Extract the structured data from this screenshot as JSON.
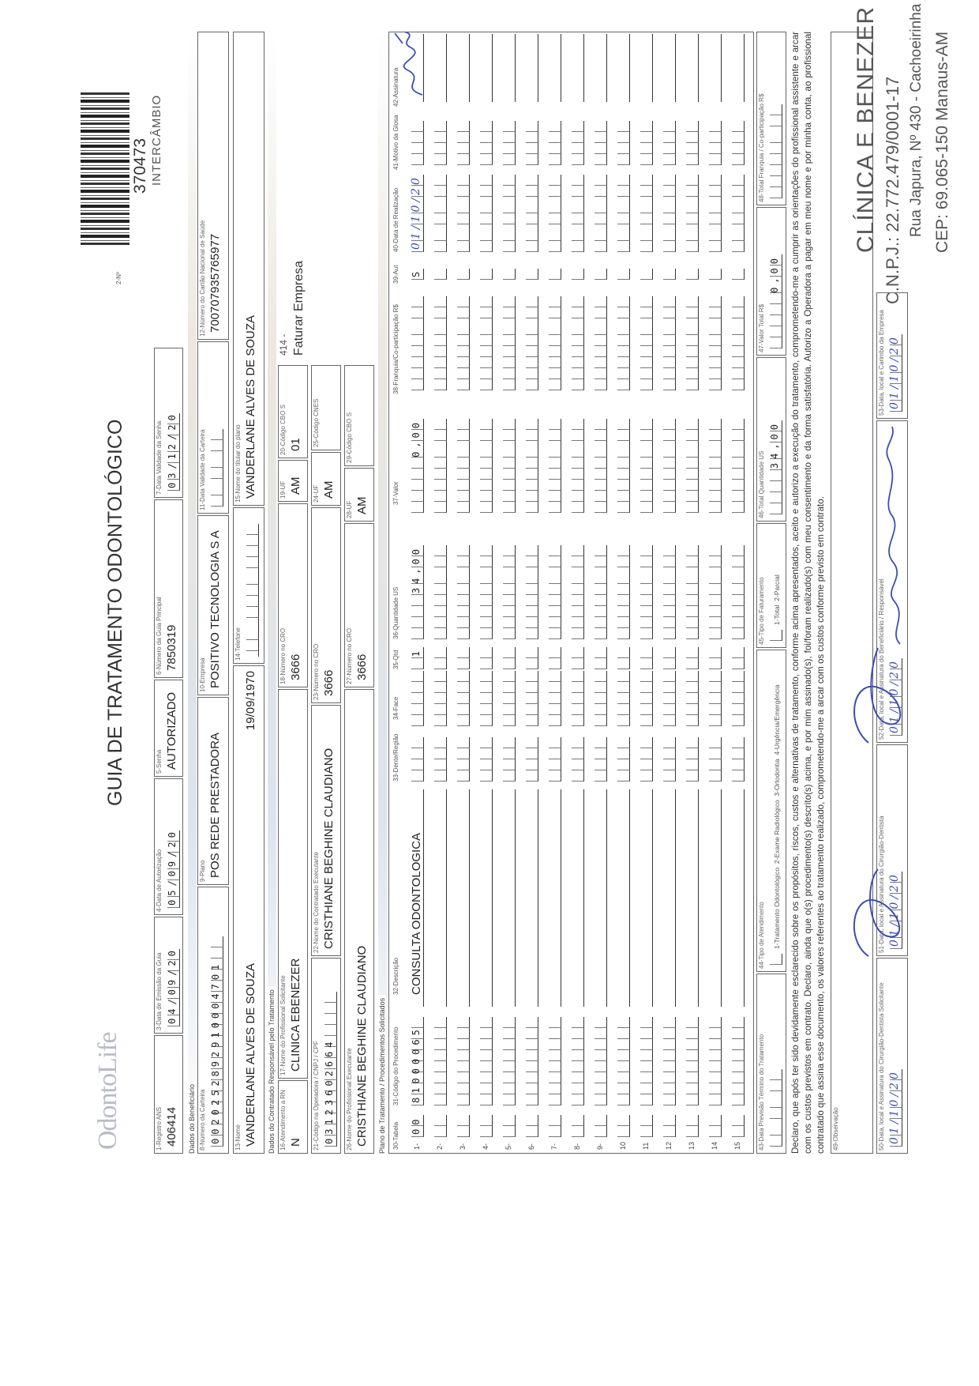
{
  "header": {
    "logo_text": "OdontoLife",
    "title": "GUIA DE TRATAMENTO ODONTOLÓGICO",
    "guide_number_label": "2-Nº",
    "guide_number": "370473",
    "guide_type": "INTERCÂMBIO"
  },
  "sections": {
    "beneficiario": "Dados do Beneficiário",
    "contratado": "Dados do Contratado Responsável pelo Tratamento",
    "plano": "Plano de Tratamento / Procedimentos Solicitados"
  },
  "fields": {
    "f1": {
      "label": "1-Registro ANS",
      "value": "406414"
    },
    "f3": {
      "label": "3-Data de Emissão da Guia",
      "value": "04/09/20"
    },
    "f4": {
      "label": "4-Data de Autorização",
      "value": "05/09/20"
    },
    "f5": {
      "label": "5-Senha",
      "value": "AUTORIZADO"
    },
    "f6": {
      "label": "6-Número da Guia Principal",
      "value": "7850319"
    },
    "f7": {
      "label": "7-Data Validade da Senha",
      "value": "03/12/20"
    },
    "f8": {
      "label": "8-Número da Carteira",
      "value": "0020252892910004701"
    },
    "f9": {
      "label": "9-Plano",
      "value": "POS REDE PRESTADORA"
    },
    "f10": {
      "label": "10-Empresa",
      "value": "POSITIVO TECNOLOGIA S A"
    },
    "f11": {
      "label": "11-Data Validade da Carteira",
      "value": ""
    },
    "f12": {
      "label": "12-Número do Cartão Nacional de Saúde",
      "value": "700707935765977"
    },
    "f13": {
      "label": "13-Nome",
      "value": "VANDERLANE ALVES DE SOUZA",
      "birth_date": "19/09/1970"
    },
    "f14": {
      "label": "14-Telefone",
      "value": ""
    },
    "f15": {
      "label": "15-Nome do titular do plano",
      "value": "VANDERLANE ALVES DE SOUZA"
    },
    "f16": {
      "label": "16-Atendimento a RN",
      "value": "N"
    },
    "f17": {
      "label": "17-Nome do Profissional Solicitante",
      "value": "CLINICA EBENEZER"
    },
    "f18": {
      "label": "18-Número no CRO",
      "value": "3666"
    },
    "f19": {
      "label": "19-UF",
      "value": "AM"
    },
    "f20": {
      "label": "20-Código CBO S",
      "value": "01"
    },
    "billing_note": {
      "code": "414 -",
      "text": "Faturar Empresa"
    },
    "f21": {
      "label": "21-Código na Operadora / CNPJ / CPF",
      "value": "03123602664"
    },
    "f22": {
      "label": "22-Nome do Contratado Executante",
      "value": "CRISTHIANE BEGHINE CLAUDIANO"
    },
    "f23": {
      "label": "23-Número no CRO",
      "value": "3666"
    },
    "f24": {
      "label": "24-UF",
      "value": "AM"
    },
    "f25": {
      "label": "25-Código CNES",
      "value": ""
    },
    "f26": {
      "label": "26-Nome do Profissional Executante",
      "value": "CRISTHIANE BEGHINE CLAUDIANO"
    },
    "f27": {
      "label": "27-Número no CRO",
      "value": "3666"
    },
    "f28": {
      "label": "28-UF",
      "value": "AM"
    },
    "f29": {
      "label": "29-Código CBO S",
      "value": ""
    },
    "f43": {
      "label": "43-Data Previsão Término do Tratamento",
      "value": ""
    },
    "f44": {
      "label": "44-Tipo de Atendimento",
      "value": "",
      "options": "1-Tratamento Odontológico  2-Exame Radiológico  3-Ortodontia  4-Urgência/Emergência"
    },
    "f45": {
      "label": "45-Tipo de Faturamento",
      "value": "",
      "options": "1-Total  2-Parcial"
    },
    "f46": {
      "label": "46-Total Quantidade US",
      "value": "34,00"
    },
    "f47": {
      "label": "47-Valor Total R$",
      "value": "0,00"
    },
    "f48": {
      "label": "48-Total Franquia / Co-participação R$",
      "value": ""
    },
    "f49": {
      "label": "49-Observação",
      "value": ""
    },
    "f50": {
      "label": "50-Data, local e Assinatura do Cirurgião-Dentista Solicitante",
      "value": "01/10/20"
    },
    "f51": {
      "label": "51-Data, local e Assinatura do Cirurgião-Dentista",
      "value": "01/10/20"
    },
    "f52": {
      "label": "52-Data, local e Assinatura do Beneficiário / Responsável",
      "value": "01/10/20"
    },
    "f53": {
      "label": "53-Data, local e Carimbo da Empresa",
      "value": "01/10/20"
    }
  },
  "table": {
    "headers": {
      "tabela": "30-Tabela",
      "codigo": "31-Código do Procedimento",
      "descricao": "32-Descrição",
      "dente": "33-Dente/Região",
      "face": "34-Face",
      "qtd": "35-Qtd",
      "qtd_us": "36-Quantidade US",
      "valor": "37-Valor",
      "franquia": "38-Franquia/Co-participação R$",
      "aut": "39-Aut",
      "data": "40-Data de Realização",
      "motivo": "41-Motivo da Glosa",
      "assinatura": "42-Assinatura"
    },
    "rows": [
      {
        "n": "1-",
        "tabela": "00",
        "codigo": "81000065",
        "descricao": "CONSULTA ODONTOLOGICA",
        "dente": "",
        "face": "",
        "qtd": "1",
        "qtd_us": "34,00",
        "valor": "0,00",
        "franquia": "",
        "aut": "S",
        "data": "01/10/20",
        "motivo": "",
        "signed": true
      },
      {
        "n": "2-",
        "tabela": "",
        "codigo": "",
        "descricao": "",
        "dente": "",
        "face": "",
        "qtd": "",
        "qtd_us": "",
        "valor": "",
        "franquia": "",
        "aut": "",
        "data": "",
        "motivo": ""
      },
      {
        "n": "3-",
        "tabela": "",
        "codigo": "",
        "descricao": "",
        "dente": "",
        "face": "",
        "qtd": "",
        "qtd_us": "",
        "valor": "",
        "franquia": "",
        "aut": "",
        "data": "",
        "motivo": ""
      },
      {
        "n": "4-",
        "tabela": "",
        "codigo": "",
        "descricao": "",
        "dente": "",
        "face": "",
        "qtd": "",
        "qtd_us": "",
        "valor": "",
        "franquia": "",
        "aut": "",
        "data": "",
        "motivo": ""
      },
      {
        "n": "5-",
        "tabela": "",
        "codigo": "",
        "descricao": "",
        "dente": "",
        "face": "",
        "qtd": "",
        "qtd_us": "",
        "valor": "",
        "franquia": "",
        "aut": "",
        "data": "",
        "motivo": ""
      },
      {
        "n": "6-",
        "tabela": "",
        "codigo": "",
        "descricao": "",
        "dente": "",
        "face": "",
        "qtd": "",
        "qtd_us": "",
        "valor": "",
        "franquia": "",
        "aut": "",
        "data": "",
        "motivo": ""
      },
      {
        "n": "7-",
        "tabela": "",
        "codigo": "",
        "descricao": "",
        "dente": "",
        "face": "",
        "qtd": "",
        "qtd_us": "",
        "valor": "",
        "franquia": "",
        "aut": "",
        "data": "",
        "motivo": ""
      },
      {
        "n": "8-",
        "tabela": "",
        "codigo": "",
        "descricao": "",
        "dente": "",
        "face": "",
        "qtd": "",
        "qtd_us": "",
        "valor": "",
        "franquia": "",
        "aut": "",
        "data": "",
        "motivo": ""
      },
      {
        "n": "9-",
        "tabela": "",
        "codigo": "",
        "descricao": "",
        "dente": "",
        "face": "",
        "qtd": "",
        "qtd_us": "",
        "valor": "",
        "franquia": "",
        "aut": "",
        "data": "",
        "motivo": ""
      },
      {
        "n": "10",
        "tabela": "",
        "codigo": "",
        "descricao": "",
        "dente": "",
        "face": "",
        "qtd": "",
        "qtd_us": "",
        "valor": "",
        "franquia": "",
        "aut": "",
        "data": "",
        "motivo": ""
      },
      {
        "n": "11",
        "tabela": "",
        "codigo": "",
        "descricao": "",
        "dente": "",
        "face": "",
        "qtd": "",
        "qtd_us": "",
        "valor": "",
        "franquia": "",
        "aut": "",
        "data": "",
        "motivo": ""
      },
      {
        "n": "12",
        "tabela": "",
        "codigo": "",
        "descricao": "",
        "dente": "",
        "face": "",
        "qtd": "",
        "qtd_us": "",
        "valor": "",
        "franquia": "",
        "aut": "",
        "data": "",
        "motivo": ""
      },
      {
        "n": "13",
        "tabela": "",
        "codigo": "",
        "descricao": "",
        "dente": "",
        "face": "",
        "qtd": "",
        "qtd_us": "",
        "valor": "",
        "franquia": "",
        "aut": "",
        "data": "",
        "motivo": ""
      },
      {
        "n": "14",
        "tabela": "",
        "codigo": "",
        "descricao": "",
        "dente": "",
        "face": "",
        "qtd": "",
        "qtd_us": "",
        "valor": "",
        "franquia": "",
        "aut": "",
        "data": "",
        "motivo": ""
      },
      {
        "n": "15",
        "tabela": "",
        "codigo": "",
        "descricao": "",
        "dente": "",
        "face": "",
        "qtd": "",
        "qtd_us": "",
        "valor": "",
        "franquia": "",
        "aut": "",
        "data": "",
        "motivo": ""
      }
    ]
  },
  "declaration": "Declaro, que após ter sido devidamente esclarecido sobre os propósitos, riscos, custos e alternativas de tratamento, conforme acima apresentados, aceito e autorizo a execução do tratamento, comprometendo-me a cumprir as orientações do profissional assistente e arcar com os custos previstos em contrato. Declaro, ainda que o(s) procedimento(s) descrito(s) acima, e por mim assinado(s), foi/foram realizado(s) com meu consentimento e da forma satisfatória. Autorizo a Operadora a pagar em meu nome e por minha conta, ao profissional contratado que assina esse documento, os valores referentes ao tratamento realizado, comprometendo-me a arcar com os custos conforme previsto em contrato.",
  "stamp": {
    "name": "CLÍNICA E BENEZER",
    "cnpj": "C.N.P.J.: 22.772.479/0001-17",
    "address": "Rua Japura, Nº 430 - Cachoeirinha",
    "cep": "CEP: 69.065-150  Manaus-AM"
  },
  "colors": {
    "ink": "#3a4fb0",
    "border": "#666666"
  }
}
